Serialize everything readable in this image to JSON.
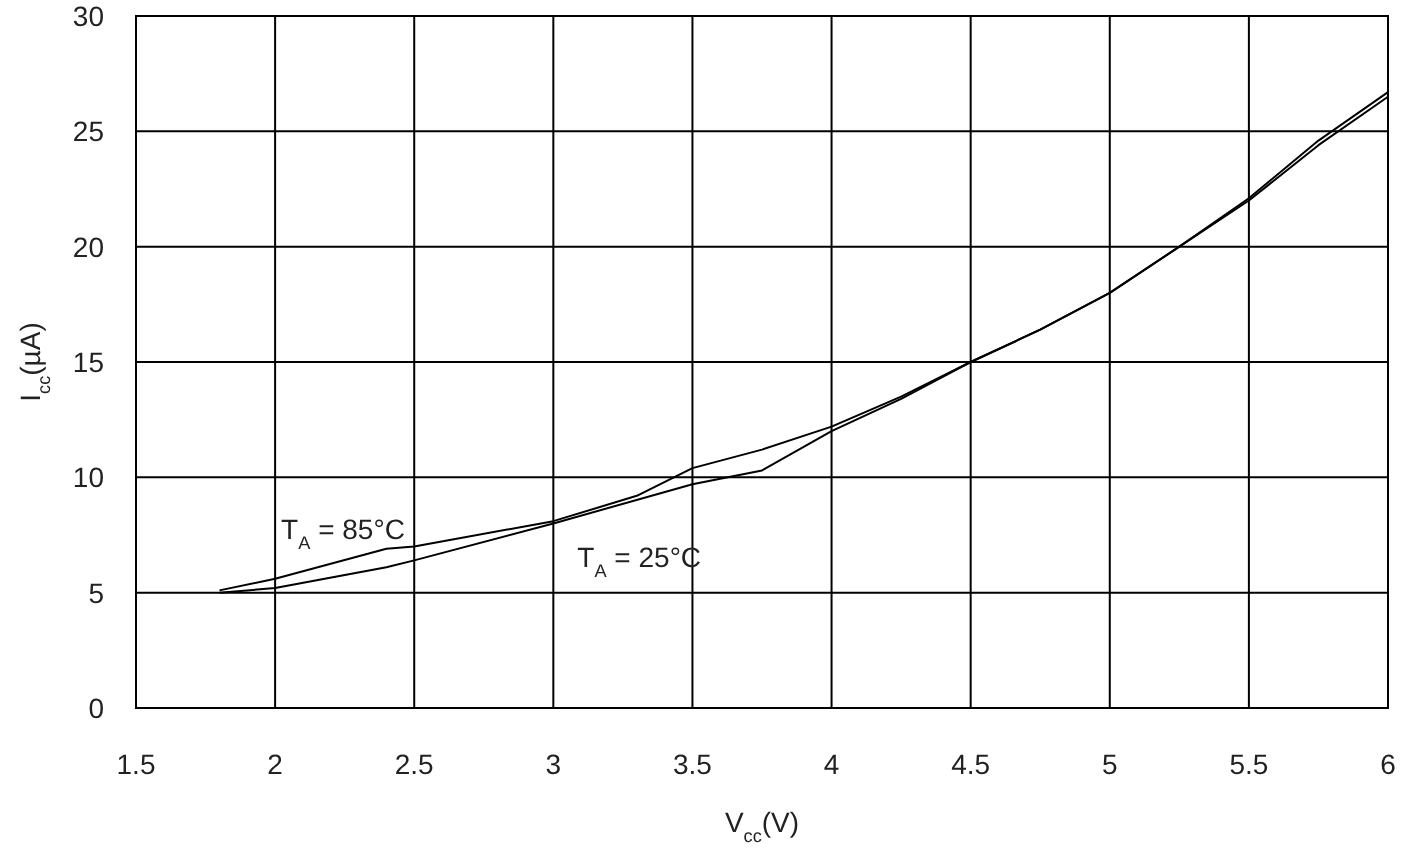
{
  "chart_data": {
    "type": "line",
    "xlabel": "V$_{cc}$(V)",
    "ylabel": "I$_{cc}$(µA)",
    "xlim": [
      1.5,
      6
    ],
    "xticks": [
      1.5,
      2,
      2.5,
      3,
      3.5,
      4,
      4.5,
      5,
      5.5,
      6
    ],
    "ylim": [
      0,
      30
    ],
    "yticks": [
      0,
      5,
      10,
      15,
      20,
      25,
      30
    ],
    "grid": true,
    "marker": "none",
    "line_style": "solid",
    "series": [
      {
        "name": "T$_{A}$ = 85°C",
        "color": "#000000",
        "x": [
          1.8,
          2,
          2.4,
          2.5,
          3,
          3.3,
          3.5,
          3.75,
          4,
          4.25,
          4.5,
          4.75,
          5,
          5.25,
          5.5,
          5.75,
          6
        ],
        "values": [
          5.1,
          5.6,
          6.9,
          7.0,
          8.1,
          9.2,
          10.4,
          11.2,
          12.2,
          13.5,
          15.0,
          16.4,
          18.0,
          20.0,
          22.1,
          24.6,
          26.7
        ]
      },
      {
        "name": "T$_{A}$ = 25°C",
        "color": "#000000",
        "x": [
          1.8,
          2,
          2.4,
          2.5,
          3,
          3.5,
          3.75,
          4,
          4.25,
          4.5,
          4.75,
          5,
          5.25,
          5.5,
          5.75,
          6
        ],
        "values": [
          5.0,
          5.2,
          6.1,
          6.4,
          8.0,
          9.7,
          10.3,
          12.0,
          13.4,
          15.0,
          16.4,
          18.0,
          20.0,
          22.0,
          24.4,
          26.5
        ]
      }
    ]
  }
}
